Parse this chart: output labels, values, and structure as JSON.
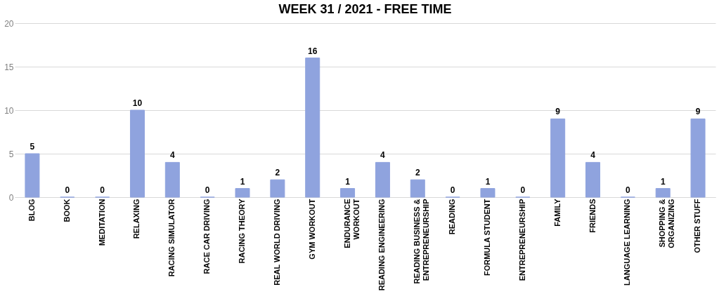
{
  "chart_data": {
    "type": "bar",
    "title": "WEEK 31  / 2021 - FREE TIME",
    "categories": [
      "BLOG",
      "BOOK",
      "MEDITATION",
      "RELAXING",
      "RACING SIMULATOR",
      "RACE CAR DRIVING",
      "RACING THEORY",
      "REAL WORLD DRIVING",
      "GYM WORKOUT",
      "ENDURANCE\nWORKOUT",
      "READING ENGINEERING",
      "READING BUSINESS &\nENTREPRENEURSHIP",
      "READING",
      "FORMULA STUDENT",
      "ENTREPRENEURSHIP",
      "FAMILY",
      "FRIENDS",
      "LANGUAGE LEARNING",
      "SHOPPING &\nORGANIZING",
      "OTHER STUFF"
    ],
    "values": [
      5,
      0,
      0,
      10,
      4,
      0,
      1,
      2,
      16,
      1,
      4,
      2,
      0,
      1,
      0,
      9,
      4,
      0,
      1,
      9
    ],
    "color": "#8fa3de",
    "ylim": [
      0,
      20
    ],
    "yticks": [
      0,
      5,
      10,
      15,
      20
    ],
    "grid": "y",
    "data_labels": true
  }
}
